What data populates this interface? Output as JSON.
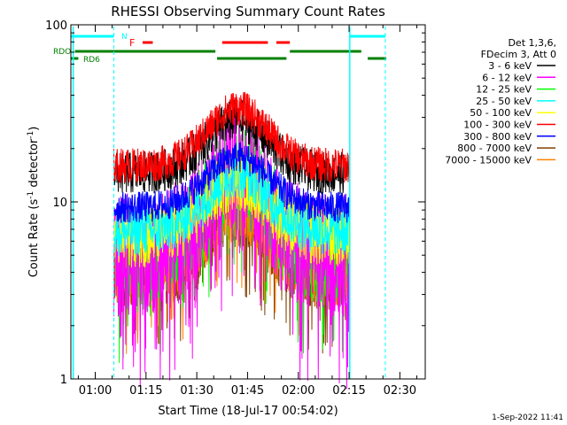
{
  "chart_data": {
    "type": "line",
    "title": "RHESSI Observing Summary Count Rates",
    "xlabel": "Start Time (18-Jul-17 00:54:02)",
    "ylabel_main": "Count Rate (s",
    "ylabel_sup": "-1",
    "ylabel_tail": " detector",
    "ylabel_end": ")",
    "y_scale": "log",
    "ylim": [
      1,
      100
    ],
    "xlim_minutes": [
      -7.2,
      97.5
    ],
    "y_ticks": [
      {
        "value": 1,
        "label": "1"
      },
      {
        "value": 10,
        "label": "10"
      },
      {
        "value": 100,
        "label": "100"
      }
    ],
    "x_ticks": [
      {
        "minute": 0,
        "label": "01:00"
      },
      {
        "minute": 15,
        "label": "01:15"
      },
      {
        "minute": 30,
        "label": "01:30"
      },
      {
        "minute": 45,
        "label": "01:45"
      },
      {
        "minute": 60,
        "label": "02:00"
      },
      {
        "minute": 75,
        "label": "02:15"
      },
      {
        "minute": 90,
        "label": "02:30"
      }
    ],
    "legend_header": [
      "Det 1,3,6,",
      "FDecim 3, Att 0"
    ],
    "series": [
      {
        "name": "3 - 6 keV",
        "color": "#000000",
        "base": 14.5,
        "peak": 29,
        "noise": 0.12,
        "sign": 1
      },
      {
        "name": "6 - 12 keV",
        "color": "#ff00ff",
        "base": 5.0,
        "peak": 16,
        "noise": 0.35,
        "sign": -1
      },
      {
        "name": "12 - 25 keV",
        "color": "#00ff00",
        "base": 5.0,
        "peak": 15.5,
        "noise": 0.28,
        "sign": -1
      },
      {
        "name": "25 - 50 keV",
        "color": "#00ffff",
        "base": 6.8,
        "peak": 14.5,
        "noise": 0.14,
        "sign": 1
      },
      {
        "name": "50 - 100 keV",
        "color": "#ffff00",
        "base": 6.4,
        "peak": 13.5,
        "noise": 0.18,
        "sign": 1
      },
      {
        "name": "100 - 300 keV",
        "color": "#ff0000",
        "base": 16.0,
        "peak": 34,
        "noise": 0.1,
        "sign": 1
      },
      {
        "name": "300 - 800 keV",
        "color": "#0000ff",
        "base": 9.3,
        "peak": 18,
        "noise": 0.09,
        "sign": 1
      },
      {
        "name": "800 - 7000 keV",
        "color": "#804000",
        "base": 4.0,
        "peak": 9,
        "noise": 0.22,
        "sign": -1
      },
      {
        "name": "7000 - 15000 keV",
        "color": "#ff8000",
        "base": 4.2,
        "peak": 10,
        "noise": 0.22,
        "sign": -1
      }
    ],
    "flags": {
      "labels": {
        "N": "N",
        "F": "F",
        "RDO": "RDO",
        "RD6": "RD6"
      },
      "night_cyan": [
        [
          -7.2,
          5.5
        ],
        [
          75.2,
          85.7
        ]
      ],
      "flare_red": [
        [
          14,
          17
        ],
        [
          37.5,
          51
        ],
        [
          53.5,
          57.5
        ]
      ],
      "rdo_green": [
        [
          -6,
          35.5
        ],
        [
          57.5,
          78.6
        ]
      ],
      "rd6_green": [
        [
          -7.2,
          -5
        ],
        [
          36,
          56.5
        ],
        [
          80.5,
          86
        ]
      ]
    },
    "saa_boundaries_minutes": [
      -6.5,
      5.5,
      75.2,
      85.7
    ]
  },
  "timestamp": "1-Sep-2022 11:41"
}
